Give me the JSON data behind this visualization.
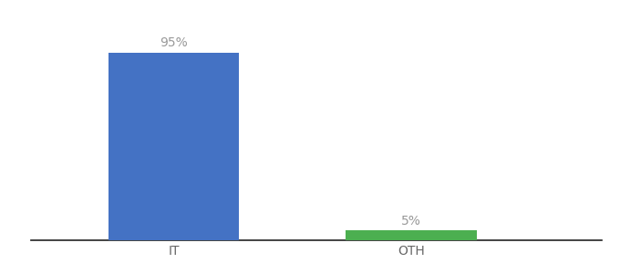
{
  "categories": [
    "IT",
    "OTH"
  ],
  "values": [
    95,
    5
  ],
  "bar_colors": [
    "#4472c4",
    "#4caf50"
  ],
  "label_texts": [
    "95%",
    "5%"
  ],
  "background_color": "#ffffff",
  "ylim": [
    0,
    105
  ],
  "bar_width": 0.55,
  "label_fontsize": 10,
  "tick_fontsize": 10,
  "label_color": "#999999",
  "tick_color": "#666666",
  "x_positions": [
    1,
    2
  ],
  "xlim": [
    0.4,
    2.8
  ]
}
